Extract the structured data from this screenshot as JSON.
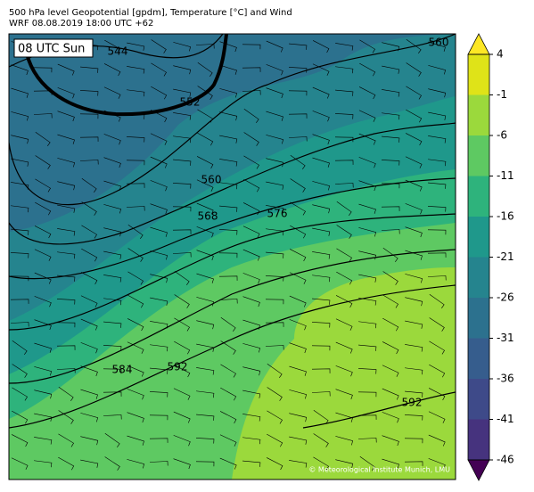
{
  "title_lines": [
    "500 hPa level Geopotential [gpdm], Temperature [°C] and Wind",
    "WRF 08.08.2019 18:00 UTC +62"
  ],
  "time_label": "08 UTC Sun",
  "copyright": "© Meteorological Institute Munich, LMU",
  "contour_labels": [
    544,
    552,
    560,
    560,
    568,
    576,
    584,
    592,
    592
  ],
  "colorbar": {
    "lim": [
      -46,
      4
    ],
    "ticks": [
      4,
      -1,
      -6,
      -11,
      -16,
      -21,
      -26,
      -31,
      -36,
      -41,
      -46
    ],
    "colors": [
      "#46337e",
      "#3e4a89",
      "#365d8d",
      "#2c718e",
      "#25848e",
      "#1f988b",
      "#2eb37c",
      "#5ec962",
      "#9bd93c",
      "#dfe318"
    ],
    "under_color": "#440154",
    "over_color": "#fde725"
  }
}
